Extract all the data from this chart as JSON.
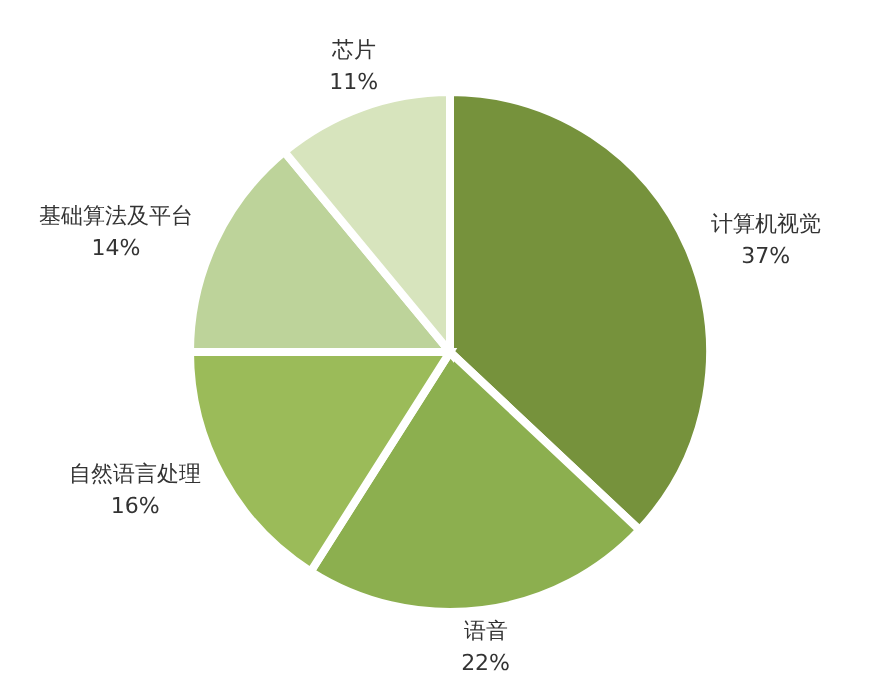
{
  "chart_data": {
    "type": "pie",
    "categories": [
      "计算机视觉",
      "语音",
      "自然语言处理",
      "基础算法及平台",
      "芯片"
    ],
    "values": [
      37,
      22,
      16,
      14,
      11
    ],
    "value_labels": [
      "37%",
      "22%",
      "16%",
      "14%",
      "11%"
    ],
    "colors": [
      "#76923c",
      "#8caf4f",
      "#9bbb59",
      "#bdd39a",
      "#d7e4bd"
    ]
  }
}
